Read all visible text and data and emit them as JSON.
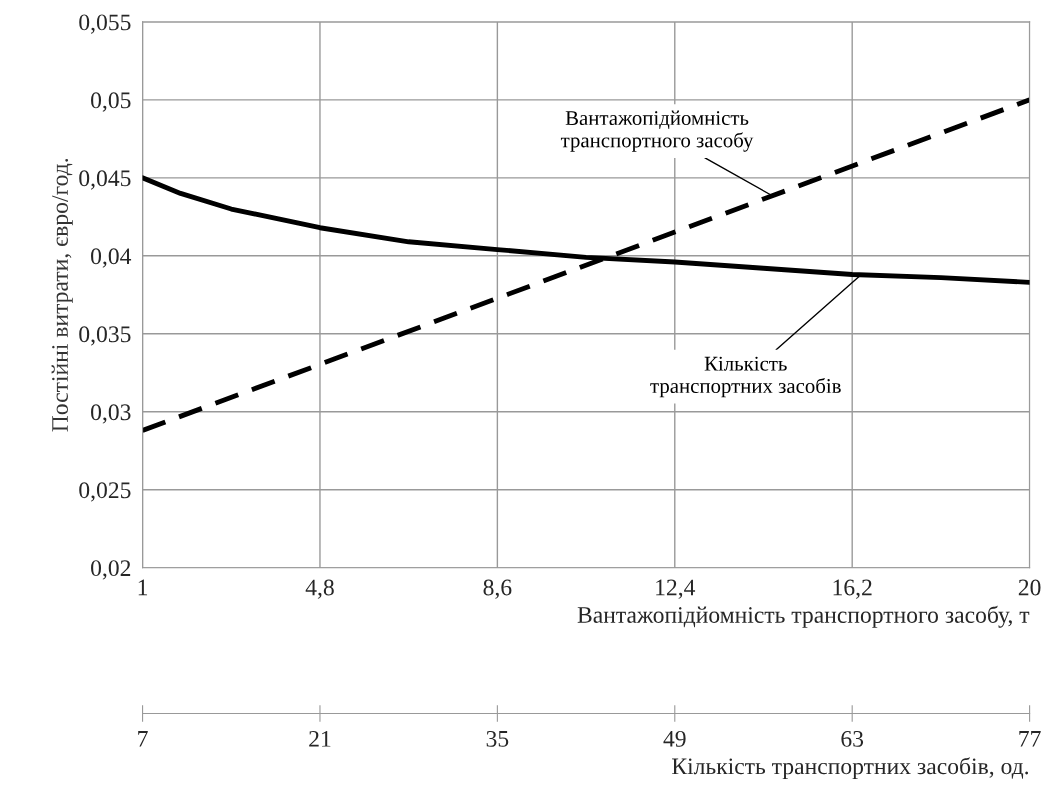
{
  "chart_data": {
    "type": "line",
    "xlabel": "Вантажопідйомність транспортного засобу, т",
    "x2label": "Кількість транспортних засобів, од.",
    "ylabel": "Постійні витрати, євро/год.",
    "xlim": [
      1,
      20
    ],
    "xticks": [
      1,
      {
        "value": 4.8,
        "label": "4,8"
      },
      {
        "value": 8.6,
        "label": "8,6"
      },
      {
        "value": 12.4,
        "label": "12,4"
      },
      {
        "value": 16.2,
        "label": "16,2"
      },
      20
    ],
    "x2lim": [
      7,
      77
    ],
    "x2ticks": [
      7,
      21,
      35,
      49,
      63,
      77
    ],
    "ylim": [
      0.02,
      0.055
    ],
    "yticks": [
      {
        "value": 0.02,
        "label": "0,02"
      },
      {
        "value": 0.025,
        "label": "0,025"
      },
      {
        "value": 0.03,
        "label": "0,03"
      },
      {
        "value": 0.035,
        "label": "0,035"
      },
      {
        "value": 0.04,
        "label": "0,04"
      },
      {
        "value": 0.045,
        "label": "0,045"
      },
      {
        "value": 0.05,
        "label": "0,05"
      },
      {
        "value": 0.055,
        "label": "0,055"
      }
    ],
    "grid": true,
    "series": [
      {
        "name": "Вантажопідйомність транспортного засобу",
        "color": "#000000",
        "line_style": "dashed",
        "x": [
          1,
          20
        ],
        "values": [
          0.0288,
          0.05
        ]
      },
      {
        "name": "Кількість транспортних засобів",
        "color": "#000000",
        "line_style": "solid",
        "axis": "x2",
        "x": [
          7,
          10,
          14,
          21,
          28,
          35,
          42,
          49,
          56,
          63,
          70,
          77
        ],
        "values": [
          0.045,
          0.044,
          0.043,
          0.0418,
          0.0409,
          0.0404,
          0.0399,
          0.0396,
          0.0392,
          0.0388,
          0.0386,
          0.0383
        ]
      }
    ]
  }
}
